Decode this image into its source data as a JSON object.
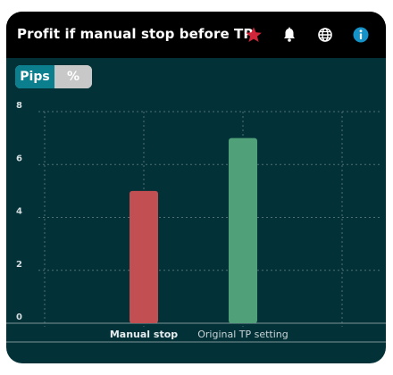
{
  "title": "Profit if manual stop before TP",
  "icons": [
    "star-icon",
    "bell-icon",
    "globe-icon",
    "info-icon"
  ],
  "colors": {
    "card_bg": "#023137",
    "title_bg": "#000000",
    "star": "#d0263a",
    "info": "#1592c8",
    "toggle_active": "#0b7f8e",
    "toggle_inactive": "#c8c8c8",
    "bar_manual": "#c24f51",
    "bar_tp": "#50a07a",
    "grid": "#4f7074"
  },
  "toggle": {
    "options": [
      "Pips",
      "%"
    ],
    "selected": "Pips"
  },
  "chart_data": {
    "type": "bar",
    "categories": [
      "Manual stop",
      "Original TP setting"
    ],
    "values": [
      5,
      7
    ],
    "colors": [
      "#c24f51",
      "#50a07a"
    ],
    "ylim": [
      0,
      8
    ],
    "yticks": [
      0,
      2,
      4,
      6,
      8
    ],
    "grid": true,
    "legend": false,
    "highlighted_category": "Manual stop"
  }
}
